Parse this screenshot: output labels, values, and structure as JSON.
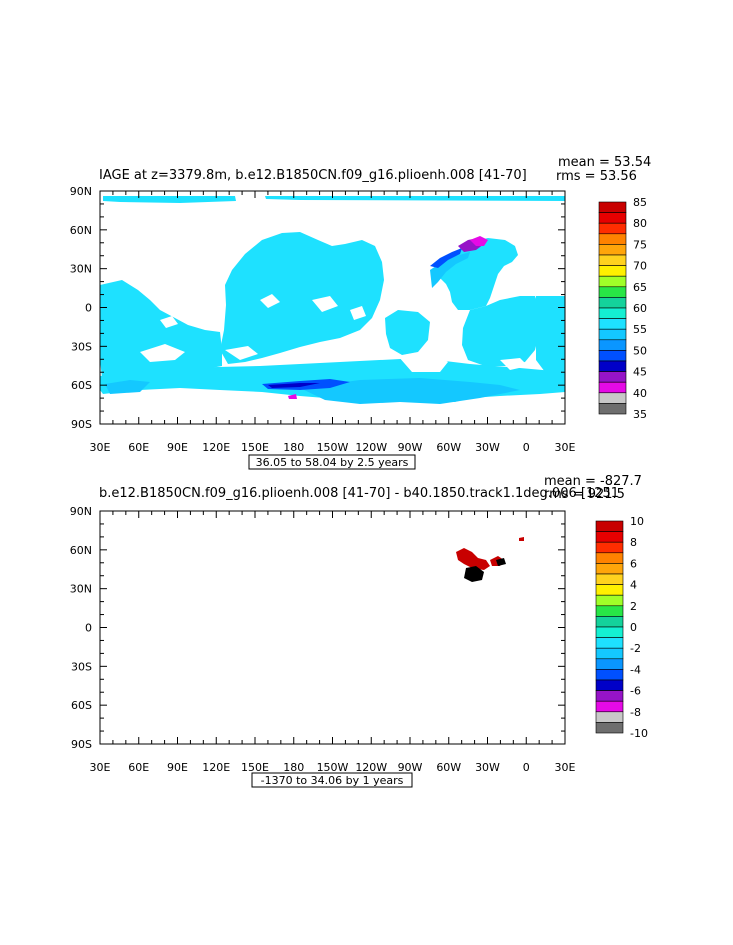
{
  "chart_data": [
    {
      "type": "heatmap",
      "title": "IAGE at z=3379.8m, b.e12.B1850CN.f09_g16.plioenh.008 [41-70]",
      "mean_label": "mean = 53.54",
      "rms_label": "rms = 53.56",
      "x_ticks": [
        "30E",
        "60E",
        "90E",
        "120E",
        "150E",
        "180",
        "150W",
        "120W",
        "90W",
        "60W",
        "30W",
        "0",
        "30E"
      ],
      "y_ticks": [
        "90N",
        "60N",
        "30N",
        "0",
        "30S",
        "60S",
        "90S"
      ],
      "range_label": "36.05 to 58.04 by 2.5 years",
      "colorbar": {
        "labels": [
          "85",
          "80",
          "75",
          "70",
          "65",
          "60",
          "55",
          "50",
          "45",
          "40",
          "35"
        ],
        "colors": [
          "#c80000",
          "#e60000",
          "#ff2d00",
          "#ff8200",
          "#ffa50a",
          "#ffd21e",
          "#fff000",
          "#a0ff28",
          "#28e646",
          "#14d29b",
          "#14f0d2",
          "#1ee1ff",
          "#14c8ff",
          "#0a96ff",
          "#0050ff",
          "#0000c8",
          "#9614c8",
          "#e60ae6",
          "#c8c8c8",
          "#6e6e6e"
        ]
      },
      "dominant_value": 55,
      "dominant_color": "#1ee1ff",
      "secondary_color": "#14c8ff"
    },
    {
      "type": "heatmap",
      "title": "b.e12.B1850CN.f09_g16.plioenh.008 [41-70] - b40.1850.track1.1deg.006 [1251",
      "mean_label": "mean = -827.7",
      "rms_label": "rms = 921.5",
      "x_ticks": [
        "30E",
        "60E",
        "90E",
        "120E",
        "150E",
        "180",
        "150W",
        "120W",
        "90W",
        "60W",
        "30W",
        "0",
        "30E"
      ],
      "y_ticks": [
        "90N",
        "60N",
        "30N",
        "0",
        "30S",
        "60S",
        "90S"
      ],
      "range_label": "-1370 to 34.06 by 1 years",
      "colorbar": {
        "labels": [
          "10",
          "8",
          "6",
          "4",
          "2",
          "0",
          "-2",
          "-4",
          "-6",
          "-8",
          "-10"
        ],
        "colors": [
          "#c80000",
          "#e60000",
          "#ff2d00",
          "#ff8200",
          "#ffa50a",
          "#ffd21e",
          "#fff000",
          "#a0ff28",
          "#28e646",
          "#14d29b",
          "#14f0d2",
          "#1ee1ff",
          "#14c8ff",
          "#0a96ff",
          "#0050ff",
          "#0000c8",
          "#9614c8",
          "#e60ae6",
          "#c8c8c8",
          "#6e6e6e"
        ]
      }
    }
  ]
}
